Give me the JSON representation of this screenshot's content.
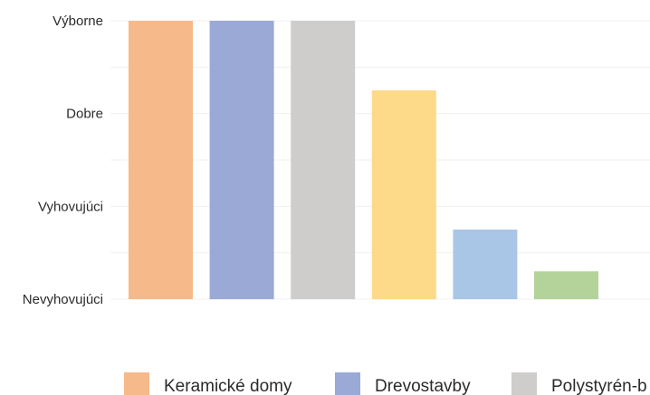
{
  "chart_data": {
    "type": "bar",
    "title": "",
    "xlabel": "",
    "ylabel": "",
    "y_tick_labels": [
      "Nevyhovujúci",
      "Vyhovujúci",
      "Dobre",
      "Výborne"
    ],
    "ylim": [
      0,
      3
    ],
    "grid": true,
    "legend_position": "bottom",
    "series": [
      {
        "name": "Keramické domy",
        "value": 3.0,
        "color": "#f5b98a"
      },
      {
        "name": "Drevostavby",
        "value": 3.0,
        "color": "#9aa9d6"
      },
      {
        "name": "Polystyrén-b",
        "value": 3.0,
        "color": "#cfcdcb"
      },
      {
        "value": 2.25,
        "color": "#fdd98a"
      },
      {
        "value": 0.75,
        "color": "#a9c6e6"
      },
      {
        "value": 0.3,
        "color": "#b3d39a"
      }
    ]
  }
}
